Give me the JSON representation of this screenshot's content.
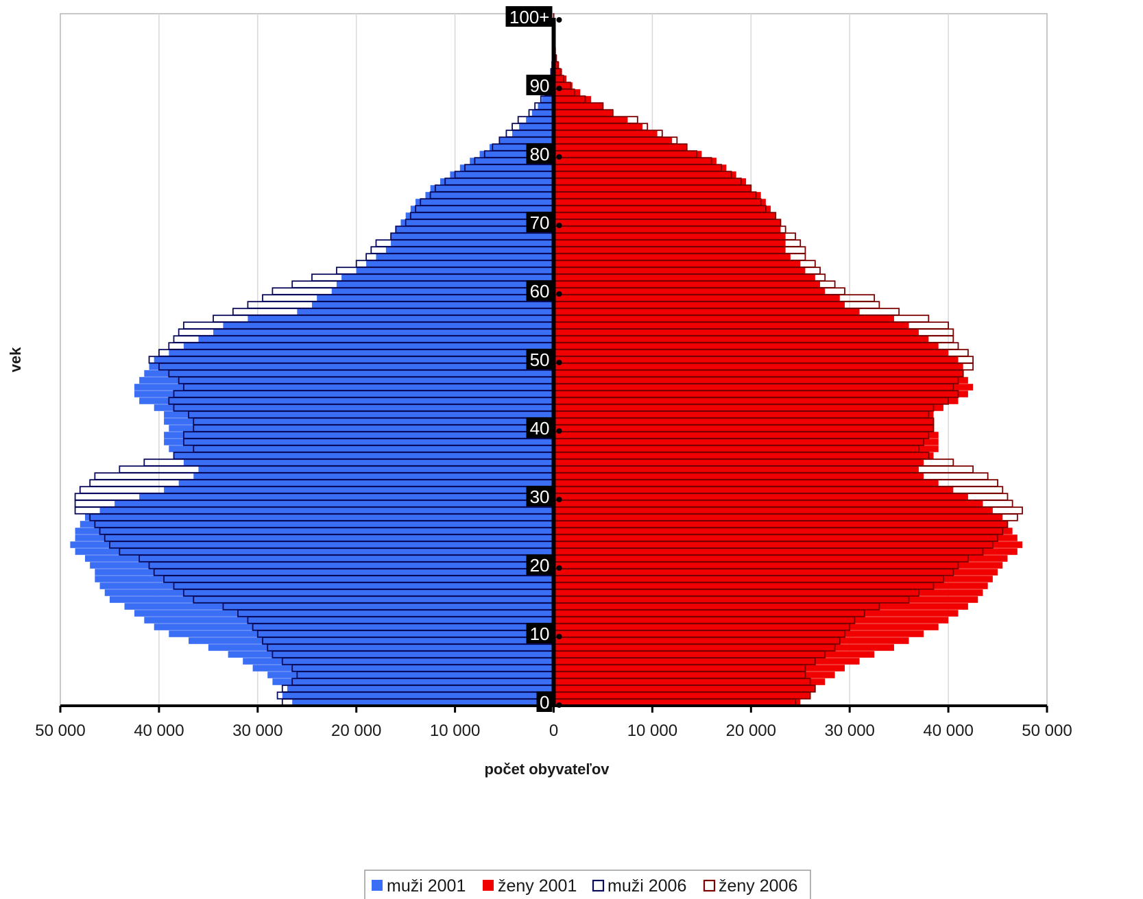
{
  "chart_data": {
    "type": "bar",
    "orientation": "horizontal-population-pyramid",
    "title": "",
    "xlabel": "počet obyvateľov",
    "ylabel": "vek",
    "xlim": [
      -50000,
      50000
    ],
    "xticks": [
      -50000,
      -40000,
      -30000,
      -20000,
      -10000,
      0,
      10000,
      20000,
      30000,
      40000,
      50000
    ],
    "xtick_labels": [
      "50 000",
      "40 000",
      "30 000",
      "20 000",
      "10 000",
      "0",
      "10 000",
      "20 000",
      "30 000",
      "40 000",
      "50 000"
    ],
    "ytick_labels": [
      "0",
      "10",
      "20",
      "30",
      "40",
      "50",
      "60",
      "70",
      "80",
      "90",
      "100+"
    ],
    "grid": "vertical",
    "legend_position": "bottom",
    "categories": [
      "0",
      "1",
      "2",
      "3",
      "4",
      "5",
      "6",
      "7",
      "8",
      "9",
      "10",
      "11",
      "12",
      "13",
      "14",
      "15",
      "16",
      "17",
      "18",
      "19",
      "20",
      "21",
      "22",
      "23",
      "24",
      "25",
      "26",
      "27",
      "28",
      "29",
      "30",
      "31",
      "32",
      "33",
      "34",
      "35",
      "36",
      "37",
      "38",
      "39",
      "40",
      "41",
      "42",
      "43",
      "44",
      "45",
      "46",
      "47",
      "48",
      "49",
      "50",
      "51",
      "52",
      "53",
      "54",
      "55",
      "56",
      "57",
      "58",
      "59",
      "60",
      "61",
      "62",
      "63",
      "64",
      "65",
      "66",
      "67",
      "68",
      "69",
      "70",
      "71",
      "72",
      "73",
      "74",
      "75",
      "76",
      "77",
      "78",
      "79",
      "80",
      "81",
      "82",
      "83",
      "84",
      "85",
      "86",
      "87",
      "88",
      "89",
      "90",
      "91",
      "92",
      "93",
      "94",
      "95",
      "96",
      "97",
      "98",
      "99",
      "100+"
    ],
    "series": [
      {
        "name": "muži 2001",
        "style": "filled",
        "color": "#3a6ef5",
        "values": [
          26500,
          27500,
          27000,
          28500,
          29000,
          30500,
          31500,
          33000,
          35000,
          37000,
          39000,
          40500,
          41500,
          42500,
          43500,
          45000,
          45500,
          46000,
          46500,
          46500,
          47000,
          47500,
          48500,
          49000,
          48500,
          48500,
          48000,
          47500,
          46000,
          44500,
          42000,
          39500,
          38000,
          36500,
          36000,
          37500,
          38500,
          39000,
          39500,
          39500,
          39000,
          39500,
          39500,
          40500,
          42000,
          42500,
          42500,
          42000,
          41500,
          41000,
          40500,
          39000,
          37500,
          36000,
          34500,
          33500,
          31000,
          26000,
          24500,
          24000,
          22500,
          22000,
          21500,
          20000,
          19000,
          18000,
          17000,
          16500,
          16500,
          16000,
          15500,
          15000,
          14500,
          14000,
          13000,
          12500,
          11500,
          10500,
          9500,
          8500,
          7500,
          6500,
          5500,
          4200,
          3500,
          2800,
          2200,
          1600,
          1200,
          800,
          500,
          350,
          250,
          150,
          100,
          60,
          40,
          20,
          10,
          5,
          3
        ],
        "style_color_fill": "#3a6ef5"
      },
      {
        "name": "ženy 2001",
        "style": "filled",
        "color": "#f00000",
        "values": [
          25000,
          26000,
          26500,
          27500,
          28500,
          29500,
          31000,
          32500,
          34500,
          36000,
          37500,
          39000,
          40000,
          41000,
          42000,
          43000,
          43500,
          44000,
          44500,
          45000,
          45500,
          46000,
          47000,
          47500,
          47000,
          46500,
          46000,
          45500,
          44500,
          43500,
          42000,
          40500,
          39000,
          37500,
          37000,
          37500,
          38500,
          39000,
          39000,
          39000,
          38500,
          38500,
          38500,
          39500,
          41000,
          42000,
          42500,
          42000,
          41500,
          41500,
          41000,
          40000,
          39000,
          38000,
          37000,
          36000,
          34500,
          31000,
          29500,
          29000,
          27500,
          27000,
          26500,
          25500,
          25000,
          24000,
          23500,
          23500,
          23500,
          23000,
          23000,
          22500,
          22000,
          21500,
          21000,
          20000,
          19500,
          18500,
          17500,
          16500,
          15000,
          13500,
          12000,
          10500,
          9000,
          7500,
          6000,
          5000,
          3800,
          2700,
          1900,
          1300,
          850,
          550,
          330,
          200,
          120,
          70,
          40,
          20,
          10
        ],
        "style_color_fill": "#f00000"
      },
      {
        "name": "muži 2006",
        "style": "outlined",
        "color": "#0a0a5a",
        "values": [
          27500,
          28000,
          27500,
          26500,
          26000,
          26500,
          27500,
          28500,
          29000,
          29500,
          30000,
          30500,
          31000,
          32000,
          33500,
          36500,
          37500,
          38500,
          39500,
          40500,
          41000,
          42000,
          44000,
          45000,
          45500,
          46000,
          46500,
          47000,
          48500,
          48500,
          48500,
          48000,
          47000,
          46500,
          44000,
          41500,
          38500,
          36500,
          37500,
          37500,
          36500,
          36500,
          37000,
          38500,
          39000,
          38500,
          37500,
          38000,
          39000,
          40000,
          41000,
          40000,
          39000,
          38500,
          38000,
          37500,
          34500,
          32500,
          31000,
          29500,
          28500,
          26500,
          24500,
          22000,
          20000,
          19000,
          18500,
          18000,
          16500,
          16000,
          15000,
          14500,
          14000,
          13500,
          12500,
          12000,
          11000,
          10000,
          9000,
          8000,
          7000,
          6200,
          5500,
          4800,
          4200,
          3600,
          2500,
          1900,
          1300,
          900,
          600,
          400,
          280,
          170,
          110,
          70,
          40,
          20,
          10,
          5,
          3
        ],
        "style_color_fill": "#ffffff"
      },
      {
        "name": "ženy 2006",
        "style": "outlined",
        "color": "#7a0000",
        "values": [
          24500,
          26000,
          26500,
          26000,
          25500,
          25500,
          26500,
          27500,
          28500,
          29000,
          29500,
          30000,
          30500,
          31500,
          33000,
          36000,
          37000,
          38500,
          39500,
          40500,
          41000,
          42000,
          43500,
          44500,
          45000,
          45500,
          46000,
          47000,
          47500,
          46500,
          46000,
          45500,
          45000,
          44000,
          42500,
          40500,
          38000,
          37000,
          37500,
          38000,
          38500,
          38500,
          38000,
          38500,
          40000,
          41000,
          40500,
          41000,
          41500,
          42500,
          42500,
          42000,
          41000,
          40500,
          40500,
          40000,
          38000,
          35000,
          33000,
          32500,
          29500,
          28500,
          27500,
          27000,
          26500,
          25500,
          25500,
          25000,
          24500,
          23500,
          23000,
          22500,
          21500,
          21000,
          20500,
          20000,
          19000,
          18000,
          17000,
          16000,
          14500,
          13500,
          12500,
          11000,
          9500,
          8500,
          6000,
          5000,
          3200,
          2100,
          1700,
          1000,
          700,
          450,
          260,
          160,
          90,
          50,
          30,
          15,
          8
        ],
        "style_color_fill": "#ffffff"
      }
    ]
  }
}
